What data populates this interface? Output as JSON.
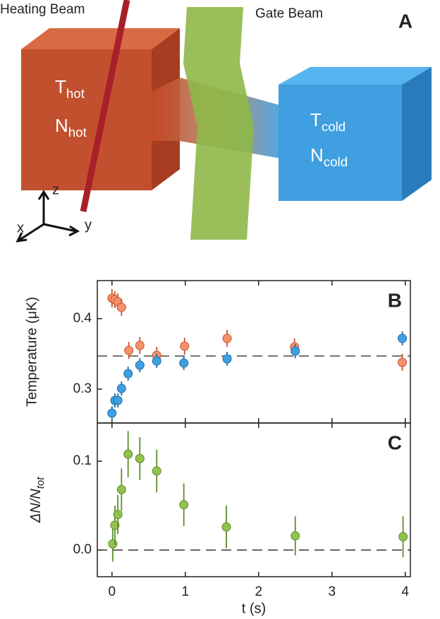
{
  "illustration": {
    "panel": "A",
    "heating_beam": "Heating Beam",
    "gate_beam": "Gate Beam",
    "hot_temperature": {
      "main": "T",
      "sub": "hot"
    },
    "hot_number": {
      "main": "N",
      "sub": "hot"
    },
    "cold_temperature": {
      "main": "T",
      "sub": "cold"
    },
    "cold_number": {
      "main": "N",
      "sub": "cold"
    },
    "axes": [
      "x",
      "y",
      "z"
    ]
  },
  "chart_data": [
    {
      "type": "scatter",
      "panel": "B",
      "ylabel": "Temperature (μK)",
      "xlim": [
        -0.2,
        4.07
      ],
      "xticks": [
        0,
        1,
        2,
        3,
        4
      ],
      "ylim": [
        0.252,
        0.454
      ],
      "yticks": [
        0.3,
        0.4
      ],
      "reference_line": 0.347,
      "series": [
        {
          "color": "#f4906c",
          "edge": "#c9542f",
          "x": [
            0.0,
            0.04,
            0.08,
            0.13,
            0.23,
            0.38,
            0.61,
            0.99,
            1.57,
            2.49,
            3.96
          ],
          "values": [
            0.429,
            0.427,
            0.424,
            0.416,
            0.355,
            0.362,
            0.348,
            0.361,
            0.372,
            0.36,
            0.338
          ],
          "errors": [
            0.013,
            0.012,
            0.012,
            0.012,
            0.012,
            0.012,
            0.012,
            0.012,
            0.012,
            0.012,
            0.012
          ]
        },
        {
          "color": "#3fa0e0",
          "edge": "#1e6eac",
          "x": [
            0.0,
            0.04,
            0.08,
            0.13,
            0.22,
            0.38,
            0.61,
            0.98,
            1.57,
            2.5,
            3.96
          ],
          "values": [
            0.266,
            0.284,
            0.284,
            0.301,
            0.322,
            0.334,
            0.34,
            0.337,
            0.343,
            0.354,
            0.372
          ],
          "errors": [
            0.01,
            0.01,
            0.01,
            0.01,
            0.01,
            0.01,
            0.01,
            0.01,
            0.01,
            0.01,
            0.01
          ]
        }
      ]
    },
    {
      "type": "scatter",
      "panel": "C",
      "ylabel": {
        "main": "ΔN/N",
        "sub": "tot"
      },
      "xlabel": "t (s)",
      "xlim": [
        -0.2,
        4.07
      ],
      "xticks": [
        0,
        1,
        2,
        3,
        4
      ],
      "ylim": [
        -0.03,
        0.143
      ],
      "yticks": [
        {
          "value": 0,
          "label": "0.0"
        },
        0.1
      ],
      "reference_line": 0,
      "series": [
        {
          "color": "#92c24c",
          "edge": "#5e8c2a",
          "x": [
            0.01,
            0.04,
            0.08,
            0.13,
            0.22,
            0.38,
            0.61,
            0.98,
            1.56,
            2.5,
            3.97
          ],
          "values": [
            0.007,
            0.028,
            0.04,
            0.068,
            0.108,
            0.103,
            0.089,
            0.051,
            0.026,
            0.016,
            0.015
          ],
          "errors": [
            0.02,
            0.022,
            0.022,
            0.024,
            0.026,
            0.024,
            0.024,
            0.024,
            0.024,
            0.022,
            0.023
          ]
        }
      ]
    }
  ]
}
